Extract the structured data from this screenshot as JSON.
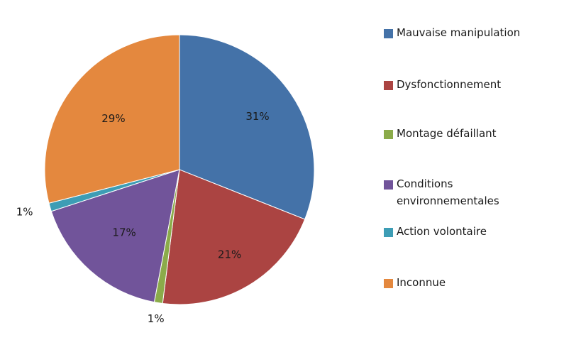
{
  "chart_data": {
    "type": "pie",
    "title": "",
    "legend_position": "right",
    "slices": [
      {
        "label": "Mauvaise manipulation",
        "value": 31,
        "display": "31%",
        "color": "#4472a8"
      },
      {
        "label": "Dysfonctionnement",
        "value": 21,
        "display": "21%",
        "color": "#ab4442"
      },
      {
        "label": "Montage défaillant",
        "value": 1,
        "display": "1%",
        "color": "#8bab4a"
      },
      {
        "label": "Conditions\nenvironnementales",
        "value": 17,
        "display": "17%",
        "color": "#71549a"
      },
      {
        "label": "Action volontaire",
        "value": 1,
        "display": "1%",
        "color": "#3d9db5"
      },
      {
        "label": "Inconnue",
        "value": 29,
        "display": "29%",
        "color": "#e4883e"
      }
    ]
  }
}
